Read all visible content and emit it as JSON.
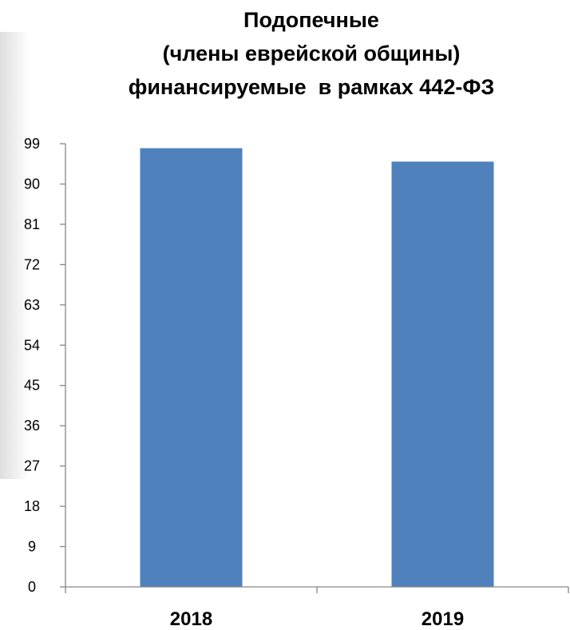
{
  "chart_data": {
    "type": "bar",
    "title_lines": [
      "Подопечные",
      "(члены еврейской общины)",
      "финансируемые  в рамках 442-ФЗ"
    ],
    "categories": [
      "2018",
      "2019"
    ],
    "values": [
      98,
      95
    ],
    "ylim": [
      0,
      99
    ],
    "yticks": [
      "0",
      "9",
      "18",
      "27",
      "36",
      "45",
      "54",
      "63",
      "72",
      "81",
      "90",
      "99"
    ],
    "xlabel": "",
    "ylabel": "",
    "grid": false,
    "legend": "none",
    "bar_color": "#4F81BD",
    "axis_color": "#868686"
  }
}
